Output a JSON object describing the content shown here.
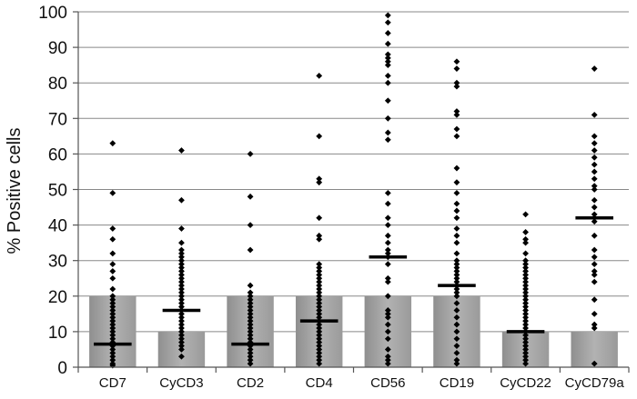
{
  "chart_data": {
    "type": "scatter",
    "title": "",
    "xlabel": "",
    "ylabel": "% Positive cells",
    "ylim": [
      0,
      100
    ],
    "yticks": [
      "0",
      "10",
      "20",
      "30",
      "40",
      "50",
      "60",
      "70",
      "80",
      "90",
      "100"
    ],
    "grid": true,
    "legend": "none",
    "colors": {
      "bar": "#a8a8a8",
      "point": "#000000",
      "median": "#000000",
      "grid": "#888888"
    },
    "categories": [
      "CD7",
      "CyCD3",
      "CD2",
      "CD4",
      "CD56",
      "CD19",
      "CyCD22",
      "CyCD79a"
    ],
    "bar_values": [
      20,
      10,
      20,
      20,
      20,
      20,
      10,
      10
    ],
    "medians": [
      6.5,
      16,
      6.5,
      13,
      31,
      23,
      10,
      42
    ],
    "points": [
      [
        63,
        49,
        39,
        36,
        32,
        29,
        27,
        25,
        22,
        20,
        19,
        18,
        17,
        16,
        15,
        14,
        13,
        12,
        11,
        10,
        9,
        8,
        7,
        6,
        5,
        4,
        3,
        2,
        1,
        0.5
      ],
      [
        61,
        47,
        39,
        35,
        33,
        32,
        31,
        30,
        29,
        28,
        27,
        26,
        25,
        24,
        23,
        22,
        21,
        20,
        19,
        18,
        17,
        16,
        15,
        14,
        13,
        12,
        11,
        10,
        9,
        8,
        7,
        6,
        5,
        3
      ],
      [
        60,
        48,
        40,
        33,
        23,
        21,
        20,
        19,
        18,
        17,
        16,
        15,
        14,
        13,
        12,
        11,
        10,
        9,
        8,
        7,
        6,
        5,
        4,
        3,
        2,
        1
      ],
      [
        82,
        65,
        53,
        52,
        42,
        37,
        36,
        29,
        28,
        27,
        26,
        25,
        24,
        23,
        22,
        21,
        20,
        19,
        18,
        17,
        16,
        15,
        14,
        13,
        12,
        11,
        10,
        9,
        8,
        7,
        6,
        5,
        4,
        3,
        2,
        1
      ],
      [
        99,
        97,
        94,
        91,
        88,
        87,
        86,
        85,
        82,
        80,
        75,
        70,
        66,
        64,
        49,
        46,
        42,
        40,
        37,
        35,
        33,
        32,
        31,
        29,
        25,
        24,
        20,
        16,
        15,
        14,
        12,
        10,
        8,
        5,
        3,
        2,
        1
      ],
      [
        86,
        84,
        80,
        79,
        72,
        71,
        67,
        65,
        56,
        52,
        49,
        46,
        44,
        42,
        39,
        37,
        35,
        32,
        30,
        29,
        28,
        27,
        26,
        25,
        24,
        23,
        22,
        21,
        20,
        18,
        16,
        14,
        12,
        10,
        8,
        6,
        4,
        2,
        1
      ],
      [
        43,
        38,
        36,
        35,
        32,
        30,
        29,
        28,
        27,
        26,
        25,
        24,
        23,
        22,
        21,
        20,
        19,
        18,
        17,
        16,
        15,
        14,
        13,
        12,
        11,
        10,
        9,
        8,
        7,
        6,
        5,
        4,
        3,
        2,
        1
      ],
      [
        84,
        71,
        65,
        63,
        61,
        59,
        57,
        55,
        53,
        51,
        50,
        47,
        45,
        43,
        41,
        37,
        33,
        31,
        29,
        27,
        26,
        24,
        19,
        15,
        12,
        11,
        1
      ]
    ]
  }
}
